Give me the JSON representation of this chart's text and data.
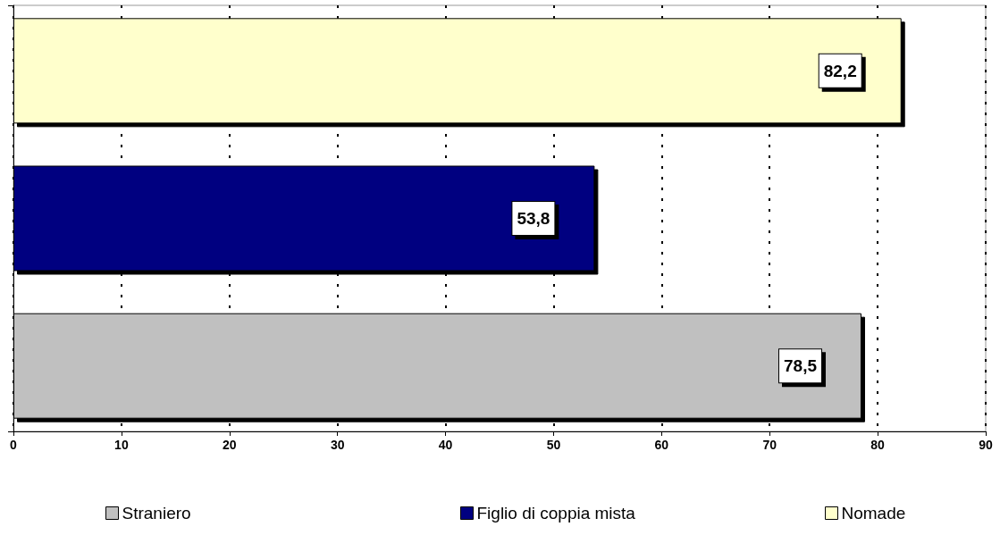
{
  "chart_data": {
    "type": "bar",
    "orientation": "horizontal",
    "categories": [
      null
    ],
    "series": [
      {
        "name": "Straniero",
        "color": "#c0c0c0",
        "values": [
          78.5
        ],
        "value_labels": [
          "78,5"
        ]
      },
      {
        "name": "Figlio di coppia mista",
        "color": "#000080",
        "values": [
          53.8
        ],
        "value_labels": [
          "53,8"
        ]
      },
      {
        "name": "Nomade",
        "color": "#ffffcc",
        "values": [
          82.2
        ],
        "value_labels": [
          "82,2"
        ]
      }
    ],
    "xlim": [
      0,
      90
    ],
    "xticks": [
      0,
      10,
      20,
      30,
      40,
      50,
      60,
      70,
      80,
      90
    ],
    "grid": "x",
    "legend": "bottom"
  }
}
